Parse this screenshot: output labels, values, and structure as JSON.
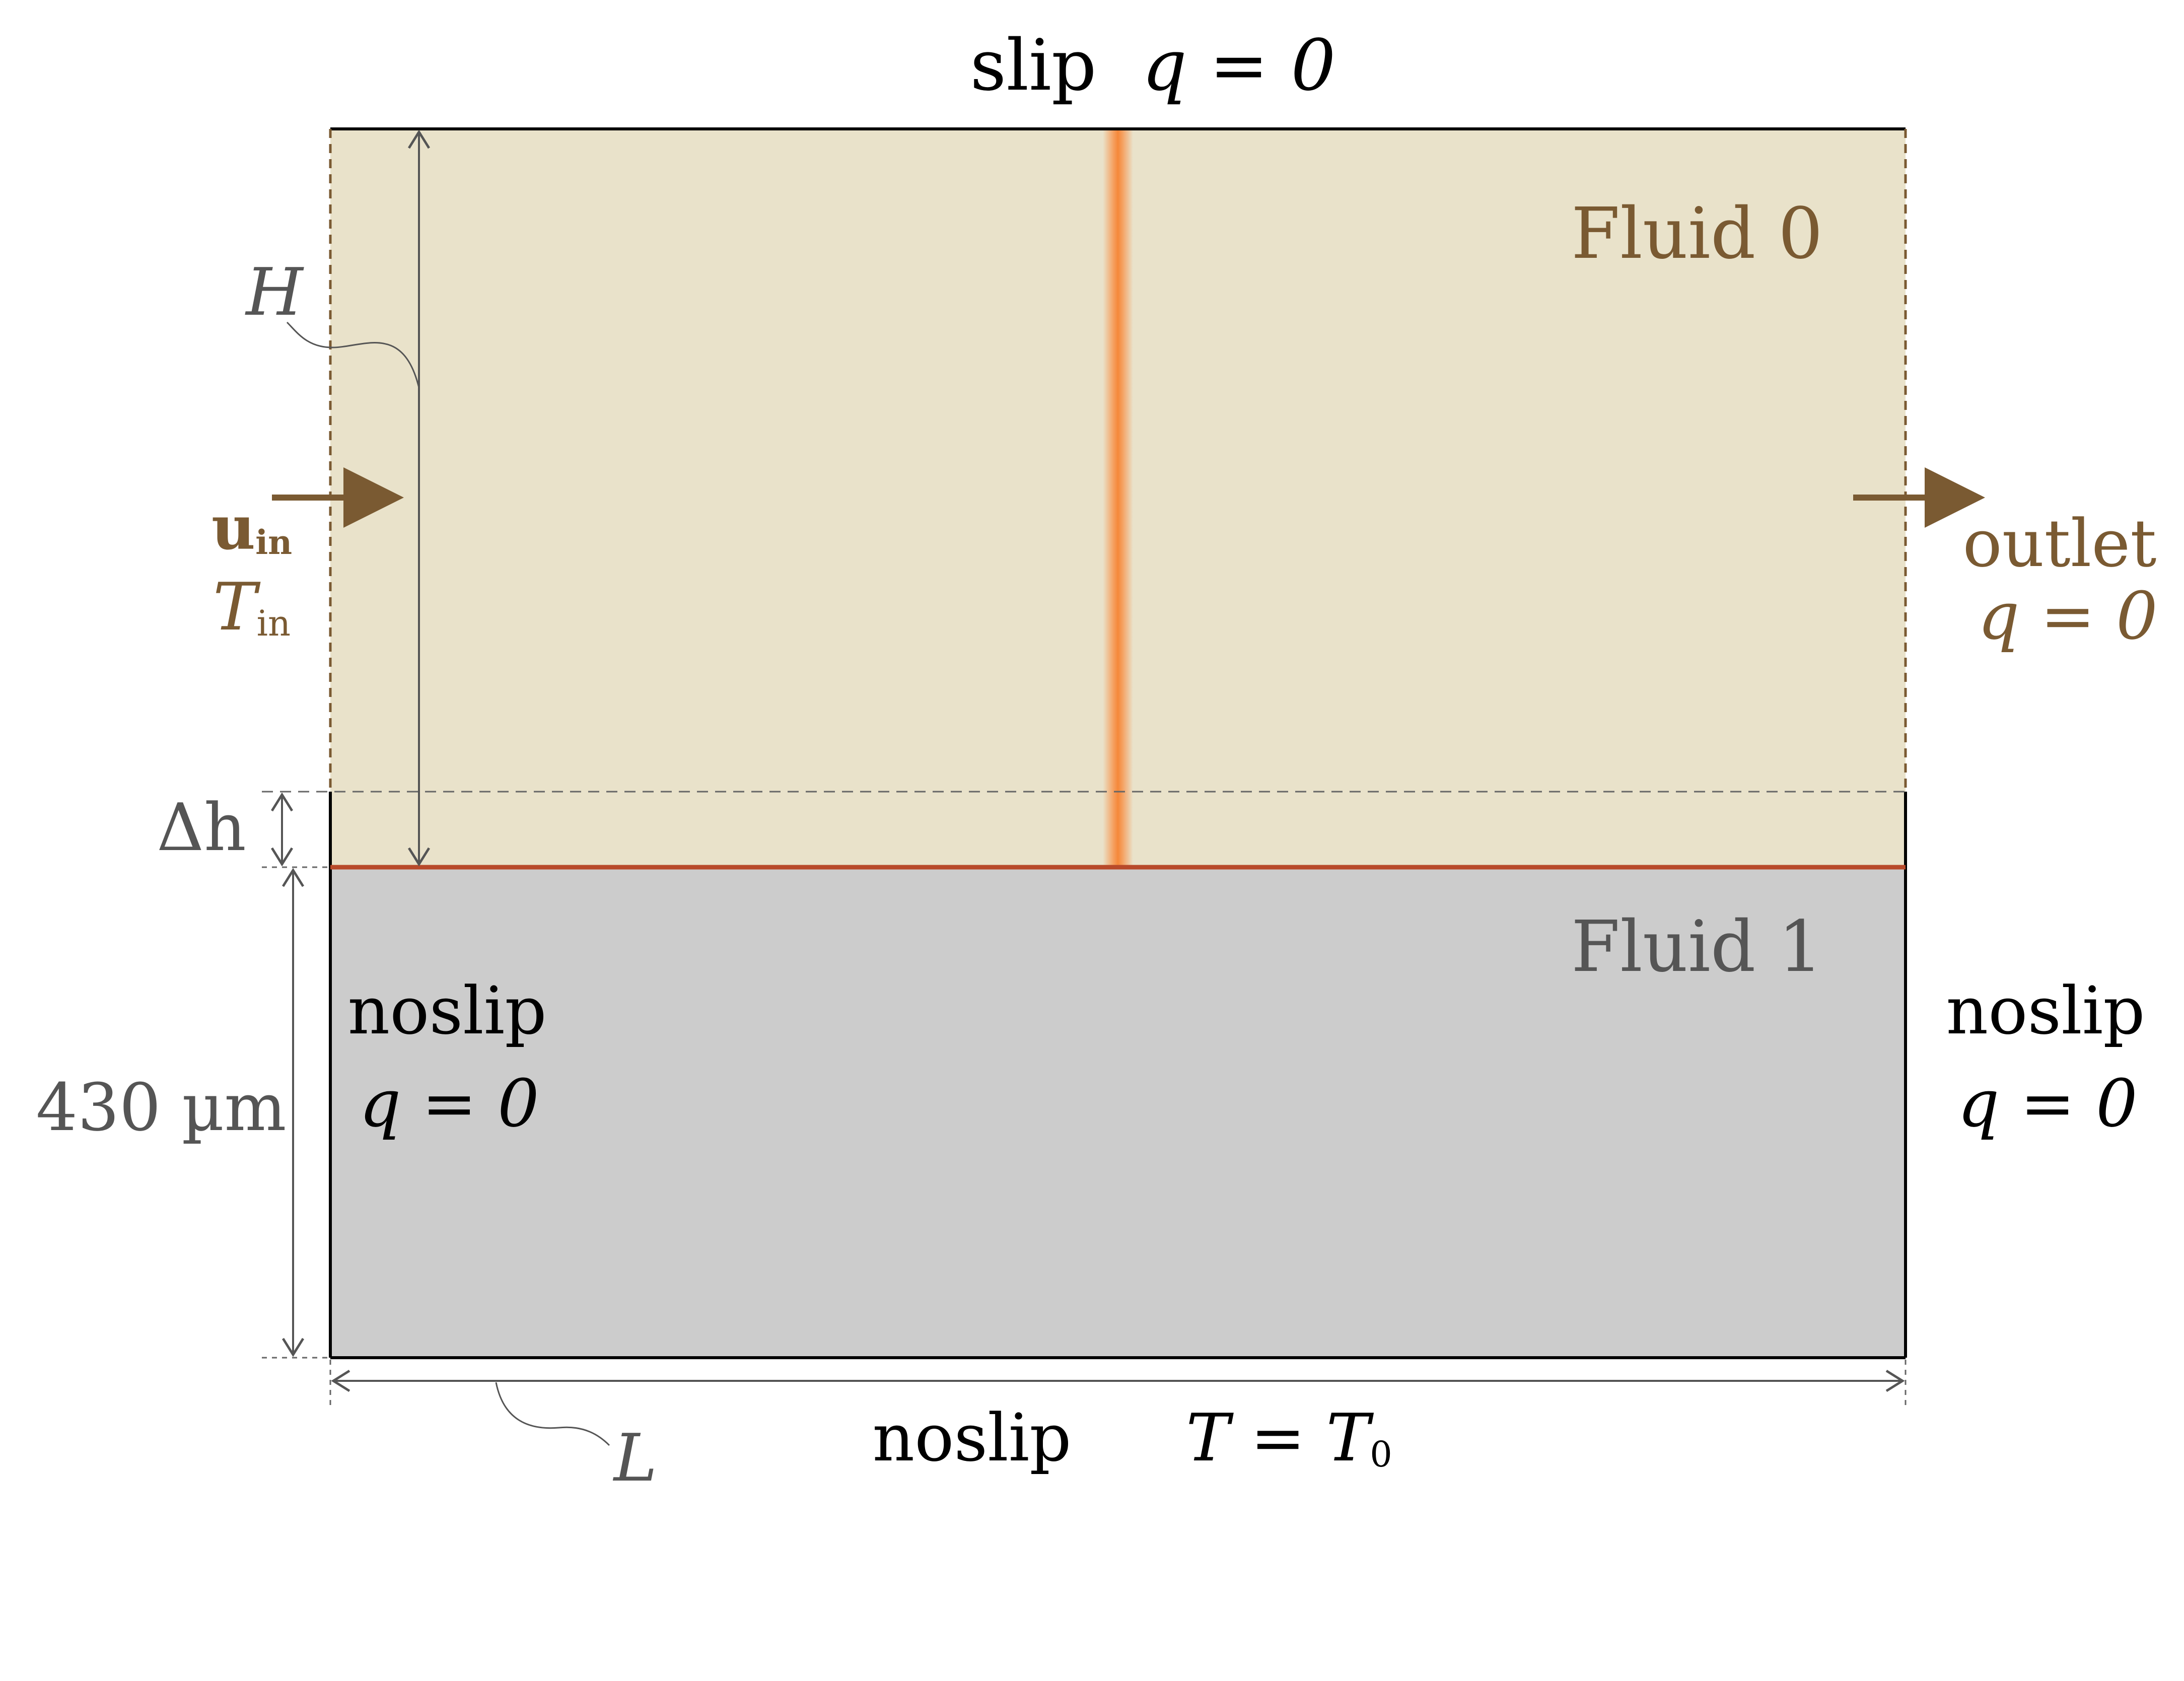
{
  "top_boundary": {
    "condition": "slip",
    "flux": "q = 0"
  },
  "bottom_boundary": {
    "condition": "noslip",
    "temp": "T = T",
    "temp_sub": "0"
  },
  "left_boundary": {
    "condition": "noslip",
    "flux": "q = 0"
  },
  "right_boundary": {
    "condition": "noslip",
    "flux": "q = 0"
  },
  "inlet": {
    "velocity": "u",
    "velocity_sub": "in",
    "temp": "T",
    "temp_sub": "in"
  },
  "outlet": {
    "label": "outlet",
    "flux": "q = 0"
  },
  "fluid0": {
    "label": "Fluid 0",
    "color": "#e9e2ca"
  },
  "fluid1": {
    "label": "Fluid 1",
    "color": "#cccccc"
  },
  "interface": {
    "color": "#b84a2a"
  },
  "heat_source": {
    "color": "#f5883a"
  },
  "dimensions": {
    "H": "H",
    "delta_h": "Δh",
    "thickness": "430 µm",
    "L": "L"
  },
  "colors": {
    "inlet_brown": "#7a5a32",
    "dim_gray": "#555555",
    "fluid1_text": "#555555"
  }
}
